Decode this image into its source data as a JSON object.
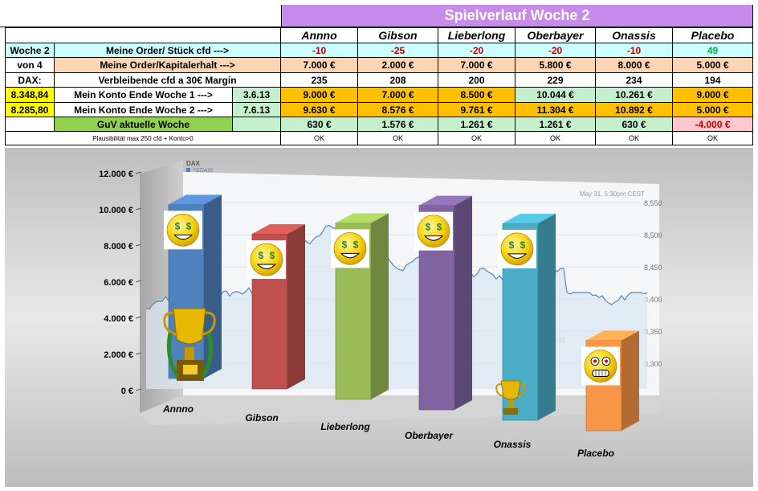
{
  "sheet": {
    "title": "Spielverlauf Woche 2",
    "players": [
      "Annno",
      "Gibson",
      "Lieberlong",
      "Oberbayer",
      "Onassis",
      "Placebo"
    ],
    "side": {
      "woche": "Woche 2",
      "von": "von 4",
      "dax_label": "DAX:",
      "dax1": "8.348,84",
      "dax2": "8.285,80"
    },
    "rows": {
      "order_stueck": {
        "label": "Meine Order/ Stück cfd  --->",
        "values": [
          "-10",
          "-25",
          "-20",
          "-20",
          "-10",
          "49"
        ]
      },
      "order_kapital": {
        "label": "Meine Order/Kapitalerhalt  --->",
        "values": [
          "7.000 €",
          "2.000 €",
          "7.000 €",
          "5.800 €",
          "8.000 €",
          "5.000 €"
        ]
      },
      "verbleibende": {
        "label": "Verbleibende cfd a 30€ Margin",
        "values": [
          "235",
          "208",
          "200",
          "229",
          "234",
          "194"
        ]
      },
      "konto1": {
        "label": "Mein Konto Ende Woche 1 --->",
        "date": "3.6.13",
        "values": [
          "9.000 €",
          "7.000 €",
          "8.500 €",
          "10.044 €",
          "10.261 €",
          "9.000 €"
        ]
      },
      "konto2": {
        "label": "Mein Konto Ende Woche 2 --->",
        "date": "7.6.13",
        "values": [
          "9.630 €",
          "8.576 €",
          "9.761 €",
          "11.304 €",
          "10.892 €",
          "5.000 €"
        ]
      },
      "guv": {
        "label": "GuV aktuelle Woche",
        "values": [
          "630 €",
          "1.576 €",
          "1.261 €",
          "1.261 €",
          "630 €",
          "-4.000 €"
        ]
      },
      "plaus": {
        "label": "Plausibilität max 250 cfd + Konto>0",
        "values": [
          "OK",
          "OK",
          "OK",
          "OK",
          "OK",
          "OK"
        ]
      }
    }
  },
  "chart_data": {
    "type": "bar",
    "categories": [
      "Annno",
      "Gibson",
      "Lieberlong",
      "Oberbayer",
      "Onassis",
      "Placebo"
    ],
    "values": [
      9630,
      8576,
      9761,
      11304,
      10892,
      5000
    ],
    "ylim": [
      0,
      12000
    ],
    "yticks": [
      "0 €",
      "2.000 €",
      "4.000 €",
      "6.000 €",
      "8.000 €",
      "10.000 €",
      "12.000 €"
    ],
    "colors": [
      "#4f81bd",
      "#c0504d",
      "#9bbb59",
      "#8064a2",
      "#4bacc6",
      "#f79646"
    ],
    "icons": [
      "money-smiley-icon",
      "money-smiley-icon",
      "money-smiley-icon",
      "money-smiley-icon",
      "money-smiley-icon",
      "grimace-smiley-icon"
    ],
    "background": {
      "label": "DAX",
      "ticker": "^GDAXI",
      "date_label": "May 31, 5:30pm CEST",
      "axis_label": "May 31",
      "right_ticks": [
        "8,550",
        "8,500",
        "8,450",
        "8,400",
        "8,350",
        "8,300"
      ]
    }
  }
}
